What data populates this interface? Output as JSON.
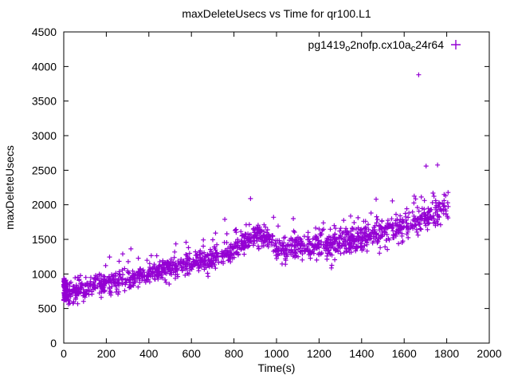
{
  "window": {
    "background": "#ffffff"
  },
  "chart_data": {
    "type": "scatter",
    "title": "maxDeleteUsecs vs Time for qr100.L1",
    "xlabel": "Time(s)",
    "ylabel": "maxDeleteUsecs",
    "xlim": [
      0,
      2000
    ],
    "ylim": [
      0,
      4500
    ],
    "xticks": [
      0,
      200,
      400,
      600,
      800,
      1000,
      1200,
      1400,
      1600,
      1800,
      2000
    ],
    "yticks": [
      0,
      500,
      1000,
      1500,
      2000,
      2500,
      3000,
      3500,
      4000,
      4500
    ],
    "grid": false,
    "legend": {
      "label": "pg1419o2nofp.cx10ac24r64",
      "label_parts": [
        {
          "text": "pg1419"
        },
        {
          "text": "o",
          "sub": true
        },
        {
          "text": "2nofp.cx10a"
        },
        {
          "text": "c",
          "sub": true
        },
        {
          "text": "24r64"
        }
      ],
      "position": "top-right",
      "marker": "plus"
    },
    "series": [
      {
        "name": "pg1419o2nofp.cx10ac24r64",
        "marker": "plus",
        "color": "#9400d3",
        "n_points": 1500,
        "x_range": [
          0,
          1810
        ],
        "noise_std": 70,
        "trend_anchors": [
          [
            0,
            700
          ],
          [
            100,
            790
          ],
          [
            200,
            860
          ],
          [
            300,
            930
          ],
          [
            400,
            1005
          ],
          [
            500,
            1080
          ],
          [
            600,
            1160
          ],
          [
            700,
            1230
          ],
          [
            800,
            1340
          ],
          [
            870,
            1500
          ],
          [
            950,
            1570
          ],
          [
            1000,
            1345
          ],
          [
            1100,
            1380
          ],
          [
            1200,
            1405
          ],
          [
            1300,
            1450
          ],
          [
            1400,
            1545
          ],
          [
            1500,
            1610
          ],
          [
            1600,
            1690
          ],
          [
            1700,
            1810
          ],
          [
            1810,
            1980
          ]
        ],
        "start_cluster": {
          "x_range": [
            0,
            12
          ],
          "y_range": [
            615,
            935
          ],
          "n": 70
        },
        "outliers": [
          [
            878,
            2090
          ],
          [
            1668,
            3880
          ],
          [
            1703,
            2560
          ],
          [
            1757,
            2575
          ],
          [
            1788,
            2150
          ],
          [
            757,
            1790
          ],
          [
            986,
            1820
          ],
          [
            1079,
            1800
          ],
          [
            1468,
            2080
          ],
          [
            1484,
            1300
          ],
          [
            1521,
            1355
          ],
          [
            1200,
            1650
          ],
          [
            1302,
            1660
          ]
        ]
      }
    ]
  }
}
